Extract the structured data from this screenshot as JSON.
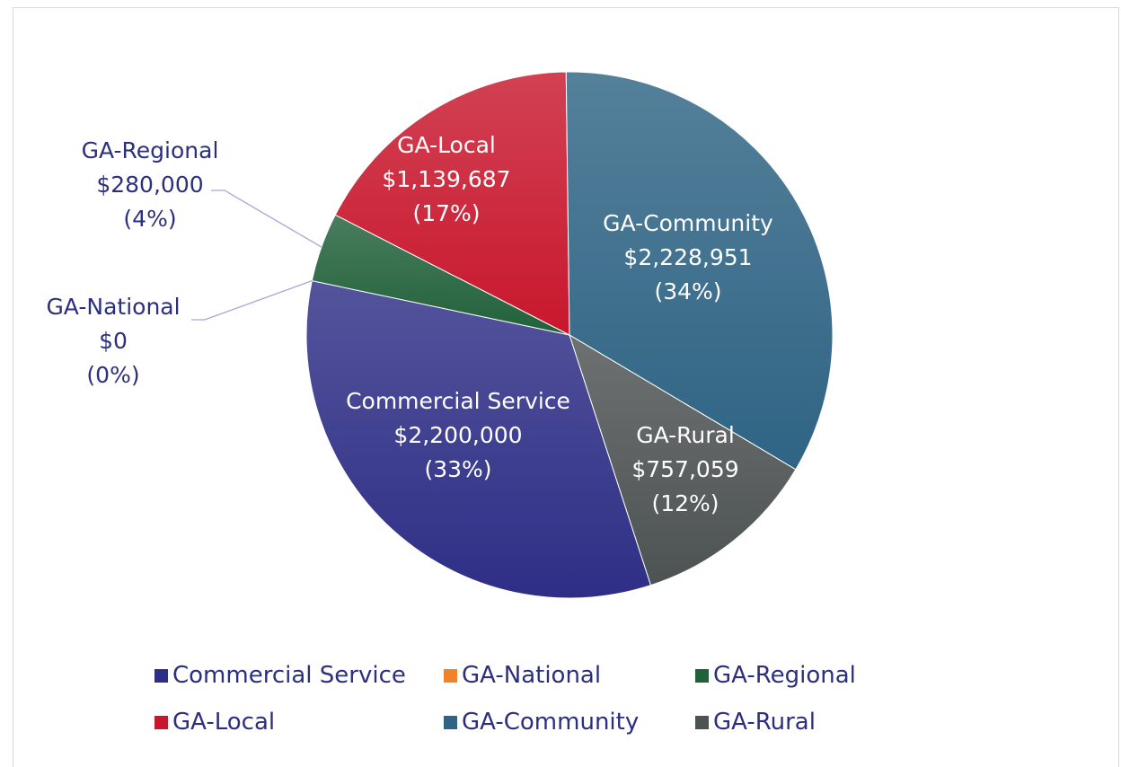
{
  "chart_data": {
    "type": "pie",
    "categories": [
      "Commercial Service",
      "GA-National",
      "GA-Regional",
      "GA-Local",
      "GA-Community",
      "GA-Rural"
    ],
    "values": [
      2200000,
      0,
      280000,
      1139687,
      2228951,
      757059
    ],
    "slices": [
      {
        "name": "Commercial Service",
        "value": 2200000,
        "value_label": "$2,200,000",
        "percent_label": "(33%)",
        "color": "#2e2e86"
      },
      {
        "name": "GA-National",
        "value": 0,
        "value_label": "$0",
        "percent_label": "(0%)",
        "color": "#f0822a"
      },
      {
        "name": "GA-Regional",
        "value": 280000,
        "value_label": "$280,000",
        "percent_label": "(4%)",
        "color": "#21613a"
      },
      {
        "name": "GA-Local",
        "value": 1139687,
        "value_label": "$1,139,687",
        "percent_label": "(17%)",
        "color": "#c8172d"
      },
      {
        "name": "GA-Community",
        "value": 2228951,
        "value_label": "$2,228,951",
        "percent_label": "(34%)",
        "color": "#2f6484"
      },
      {
        "name": "GA-Rural",
        "value": 757059,
        "value_label": "$757,059",
        "percent_label": "(12%)",
        "color": "#4d5252"
      }
    ],
    "legend": {
      "placement": "bottom",
      "rows": [
        [
          "Commercial Service",
          "GA-National",
          "GA-Regional"
        ],
        [
          "GA-Local",
          "GA-Community",
          "GA-Rural"
        ]
      ]
    },
    "title": ""
  }
}
